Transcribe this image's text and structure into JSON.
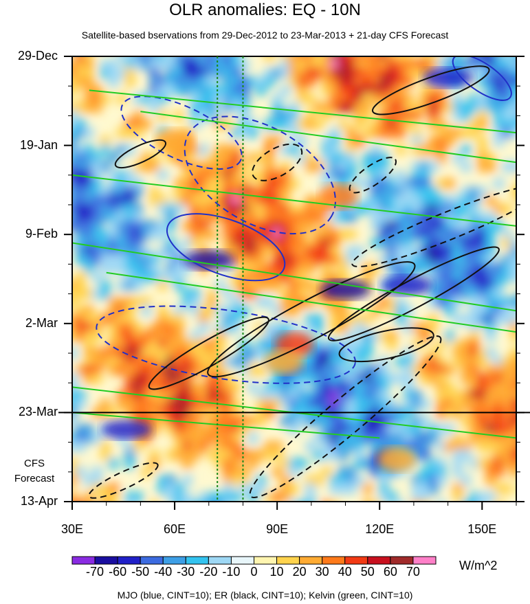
{
  "title": "OLR anomalies: EQ - 10N",
  "subtitle": "Satellite-based bservations from 29-Dec-2012 to 23-Mar-2013 + 21-day CFS Forecast",
  "forecast_label": [
    "CFS",
    "Forecast"
  ],
  "units": "W/m^2",
  "legend_note": "MJO (blue, CINT=10); ER (black, CINT=10); Kelvin (green, CINT=10)",
  "colorbar_labels": [
    "-70",
    "-60",
    "-50",
    "-40",
    "-30",
    "-20",
    "-10",
    "0",
    "10",
    "20",
    "30",
    "40",
    "50",
    "60",
    "70"
  ],
  "colorbar_colors": [
    "#8a2be2",
    "#1a0ea0",
    "#2020c8",
    "#3c6be0",
    "#3d9fe6",
    "#33c3f0",
    "#9ed8f5",
    "#e8f6fa",
    "#fff5b0",
    "#ffd34d",
    "#ffab33",
    "#ff7a1a",
    "#f23a14",
    "#c8101e",
    "#a02a2a",
    "#ff80c8"
  ],
  "chart_data": {
    "type": "heatmap",
    "title": "OLR anomalies: EQ - 10N",
    "x_ticks": [
      "30E",
      "60E",
      "90E",
      "120E",
      "150E"
    ],
    "x_tick_values": [
      30,
      60,
      90,
      120,
      150
    ],
    "xlim": [
      30,
      160
    ],
    "y_ticks": [
      "29-Dec",
      "19-Jan",
      "9-Feb",
      "2-Mar",
      "23-Mar",
      "13-Apr"
    ],
    "y_tick_days": [
      0,
      21,
      42,
      63,
      84,
      105
    ],
    "ylim_days": [
      0,
      105
    ],
    "observation_end": "23-Mar",
    "forecast_end": "13-Apr",
    "vertical_markers_lon": [
      72.5,
      80
    ],
    "value_range": [
      -70,
      70
    ],
    "units": "W/m^2",
    "overlays": [
      "MJO (blue, CINT=10)",
      "ER (black, CINT=10)",
      "Kelvin (green, CINT=10)"
    ]
  }
}
